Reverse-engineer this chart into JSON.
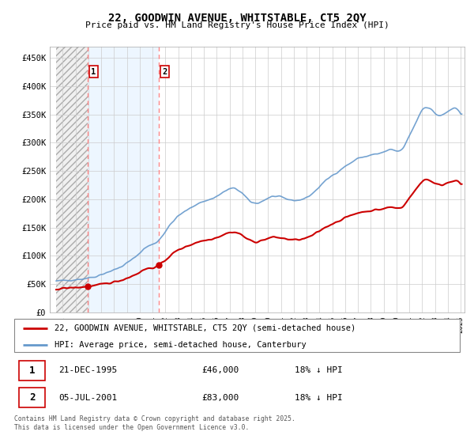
{
  "title": "22, GOODWIN AVENUE, WHITSTABLE, CT5 2QY",
  "subtitle": "Price paid vs. HM Land Registry's House Price Index (HPI)",
  "legend_line1": "22, GOODWIN AVENUE, WHITSTABLE, CT5 2QY (semi-detached house)",
  "legend_line2": "HPI: Average price, semi-detached house, Canterbury",
  "footer": "Contains HM Land Registry data © Crown copyright and database right 2025.\nThis data is licensed under the Open Government Licence v3.0.",
  "sale1_label": "1",
  "sale1_date": "21-DEC-1995",
  "sale1_price": "£46,000",
  "sale1_hpi": "18% ↓ HPI",
  "sale2_label": "2",
  "sale2_date": "05-JUL-2001",
  "sale2_price": "£83,000",
  "sale2_hpi": "18% ↓ HPI",
  "line_color_red": "#cc0000",
  "line_color_blue": "#6699cc",
  "marker_color_red": "#cc0000",
  "ylim_min": 0,
  "ylim_max": 470000,
  "yticks": [
    0,
    50000,
    100000,
    150000,
    200000,
    250000,
    300000,
    350000,
    400000,
    450000
  ],
  "ytick_labels": [
    "£0",
    "£50K",
    "£100K",
    "£150K",
    "£200K",
    "£250K",
    "£300K",
    "£350K",
    "£400K",
    "£450K"
  ],
  "sale1_x": 1995.97,
  "sale1_y": 46000,
  "sale2_x": 2001.51,
  "sale2_y": 83000,
  "vline1_x": 1995.97,
  "vline2_x": 2001.51,
  "xmin": 1993.5,
  "xmax": 2025.3,
  "hatch_region_end": 1995.97,
  "blue_shade_start": 1995.97,
  "blue_shade_end": 2001.51,
  "grid_color": "#cccccc",
  "hatch_color": "#bbbbbb"
}
